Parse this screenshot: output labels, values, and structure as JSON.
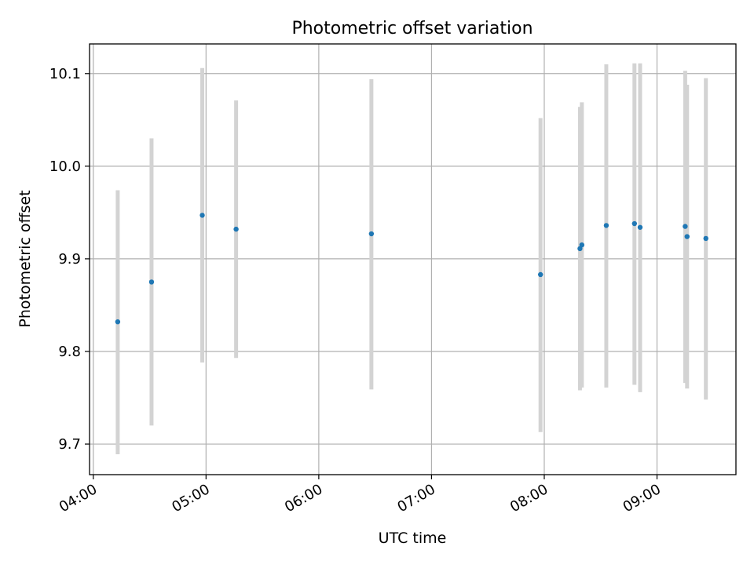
{
  "chart_data": {
    "type": "scatter",
    "title": "Photometric offset variation",
    "xlabel": "UTC time",
    "ylabel": "Photometric offset",
    "x_axis_type": "time",
    "xlim": [
      "03:58",
      "09:42"
    ],
    "ylim": [
      9.667,
      10.132
    ],
    "x_ticks": [
      "04:00",
      "05:00",
      "06:00",
      "07:00",
      "08:00",
      "09:00"
    ],
    "y_ticks": [
      "9.7",
      "9.8",
      "9.9",
      "10.0",
      "10.1"
    ],
    "grid": true,
    "legend": "none",
    "marker_color": "#1f77b4",
    "errorbar_color": "#d3d3d3",
    "series": [
      {
        "points": [
          {
            "x": "04:13",
            "y": 9.832,
            "ymin": 9.689,
            "ymax": 9.974
          },
          {
            "x": "04:31",
            "y": 9.875,
            "ymin": 9.72,
            "ymax": 10.03
          },
          {
            "x": "04:58",
            "y": 9.947,
            "ymin": 9.788,
            "ymax": 10.106
          },
          {
            "x": "05:16",
            "y": 9.932,
            "ymin": 9.793,
            "ymax": 10.071
          },
          {
            "x": "06:28",
            "y": 9.927,
            "ymin": 9.759,
            "ymax": 10.094
          },
          {
            "x": "07:58",
            "y": 9.883,
            "ymin": 9.713,
            "ymax": 10.052
          },
          {
            "x": "08:19",
            "y": 9.911,
            "ymin": 9.758,
            "ymax": 10.064
          },
          {
            "x": "08:20",
            "y": 9.915,
            "ymin": 9.761,
            "ymax": 10.069
          },
          {
            "x": "08:33",
            "y": 9.936,
            "ymin": 9.761,
            "ymax": 10.11
          },
          {
            "x": "08:48",
            "y": 9.938,
            "ymin": 9.764,
            "ymax": 10.111
          },
          {
            "x": "08:51",
            "y": 9.934,
            "ymin": 9.756,
            "ymax": 10.111
          },
          {
            "x": "09:15",
            "y": 9.935,
            "ymin": 9.766,
            "ymax": 10.103
          },
          {
            "x": "09:16",
            "y": 9.924,
            "ymin": 9.76,
            "ymax": 10.088
          },
          {
            "x": "09:26",
            "y": 9.922,
            "ymin": 9.748,
            "ymax": 10.095
          }
        ]
      }
    ]
  }
}
